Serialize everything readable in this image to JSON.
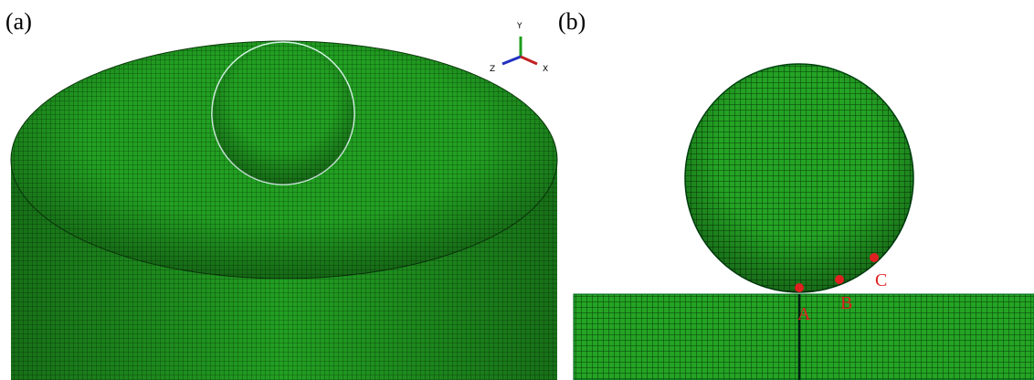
{
  "panels": [
    {
      "label": "(a)",
      "axes": {
        "y": "Y",
        "z": "Z",
        "x": "X"
      }
    },
    {
      "label": "(b)",
      "points": [
        "A",
        "B",
        "C"
      ]
    }
  ]
}
